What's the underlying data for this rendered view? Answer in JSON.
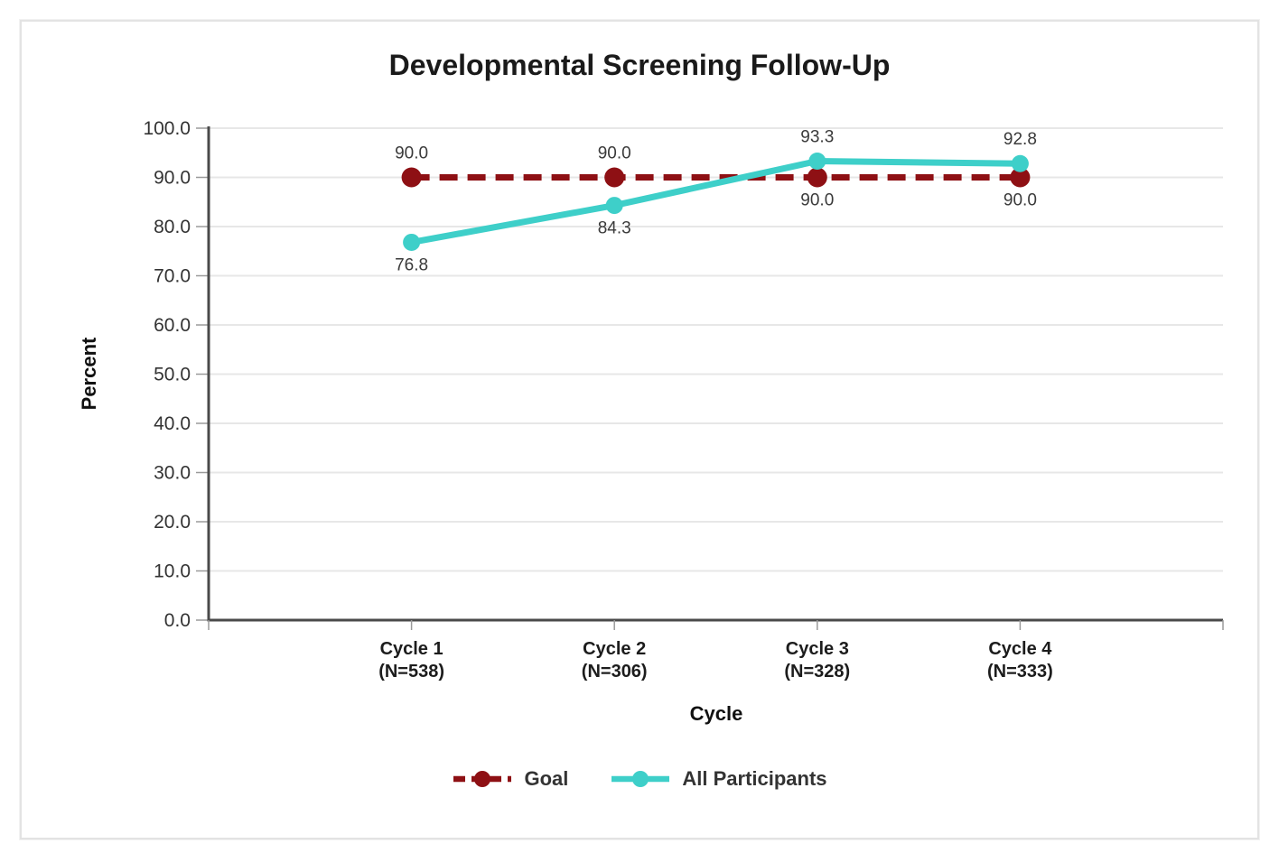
{
  "chart_data": {
    "type": "line",
    "title": "Developmental Screening Follow-Up",
    "xlabel": "Cycle",
    "ylabel": "Percent",
    "categories": [
      "Cycle 1",
      "Cycle 2",
      "Cycle 3",
      "Cycle 4"
    ],
    "category_sublabels": [
      "(N=538)",
      "(N=306)",
      "(N=328)",
      "(N=333)"
    ],
    "series": [
      {
        "name": "Goal",
        "values": [
          90.0,
          90.0,
          90.0,
          90.0
        ],
        "color": "#8e1014",
        "line_style": "dashed"
      },
      {
        "name": "All Participants",
        "values": [
          76.8,
          84.3,
          93.3,
          92.8
        ],
        "color": "#3ecfc9",
        "line_style": "solid"
      }
    ],
    "ylim": [
      0,
      100
    ],
    "ytick_step": 10,
    "ytick_labels": [
      "0.0",
      "10.0",
      "20.0",
      "30.0",
      "40.0",
      "50.0",
      "60.0",
      "70.0",
      "80.0",
      "90.0",
      "100.0"
    ],
    "grid": true,
    "legend_position": "bottom",
    "data_labels": true,
    "data_label_format": "one-decimal"
  },
  "colors": {
    "goal_line": "#8e1014",
    "participants_line": "#3ecfc9",
    "axis_line": "#4a4a4a",
    "gridline": "#e7e7e7",
    "tick_mark": "#9a9a9a",
    "title_text": "#1a1a1a",
    "data_label_text": "#3a3a3a",
    "tick_label_text": "#333333"
  }
}
